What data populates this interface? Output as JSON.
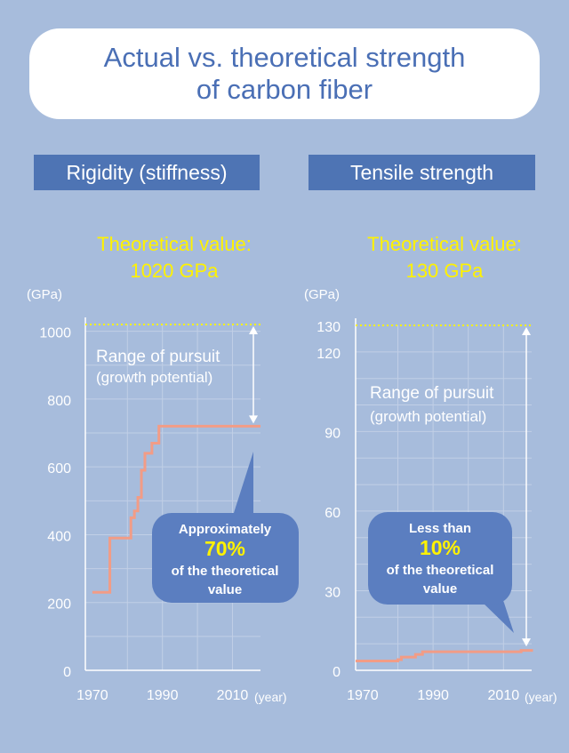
{
  "title": {
    "line1": "Actual vs. theoretical strength",
    "line2": "of carbon fiber"
  },
  "colors": {
    "background": "#a7bcdc",
    "title_text": "#4a6fb5",
    "header_bg": "#4e74b4",
    "theoretical_text": "#fff200",
    "line": "#f29c86",
    "bubble": "#5b7ec0",
    "bubble_highlight": "#fff200"
  },
  "chart_data": [
    {
      "type": "line",
      "title": "Rigidity (stiffness)",
      "theoretical_label": {
        "line1": "Theoretical value:",
        "line2": "1020 GPa"
      },
      "theoretical_value": 1020,
      "yunit": "(GPa)",
      "xunit": "(year)",
      "xlim": [
        1968,
        2018
      ],
      "ylim": [
        0,
        1020
      ],
      "xticks": [
        1970,
        1990,
        2010
      ],
      "yticks": [
        0,
        200,
        400,
        600,
        800,
        1000
      ],
      "grid": true,
      "step": true,
      "series": [
        {
          "x": [
            1970,
            1975,
            1981,
            1982,
            1983,
            1984,
            1985,
            1987,
            1989,
            1991,
            2018
          ],
          "y": [
            230,
            390,
            450,
            470,
            510,
            590,
            640,
            670,
            720,
            720,
            720
          ]
        }
      ],
      "annotations": {
        "range": {
          "line1": "Range of pursuit",
          "line2": "(growth potential)"
        },
        "bubble": {
          "line1": "Approximately",
          "highlight": "70%",
          "line2": "of the theoretical",
          "line3": "value"
        }
      }
    },
    {
      "type": "line",
      "title": "Tensile strength",
      "theoretical_label": {
        "line1": "Theoretical value:",
        "line2": "130 GPa"
      },
      "theoretical_value": 130,
      "yunit": "(GPa)",
      "xunit": "(year)",
      "xlim": [
        1968,
        2018
      ],
      "ylim": [
        0,
        130
      ],
      "xticks": [
        1970,
        1990,
        2010
      ],
      "yticks": [
        0,
        30,
        60,
        90,
        120,
        130
      ],
      "grid": true,
      "step": true,
      "series": [
        {
          "x": [
            1968,
            1980,
            1981,
            1985,
            1987,
            2000,
            2015,
            2018
          ],
          "y": [
            3.5,
            4,
            5,
            6,
            7,
            7,
            7.5,
            8
          ]
        }
      ],
      "annotations": {
        "range": {
          "line1": "Range of pursuit",
          "line2": "(growth potential)"
        },
        "bubble": {
          "line1": "Less than",
          "highlight": "10%",
          "line2": "of the theoretical",
          "line3": "value"
        }
      }
    }
  ]
}
